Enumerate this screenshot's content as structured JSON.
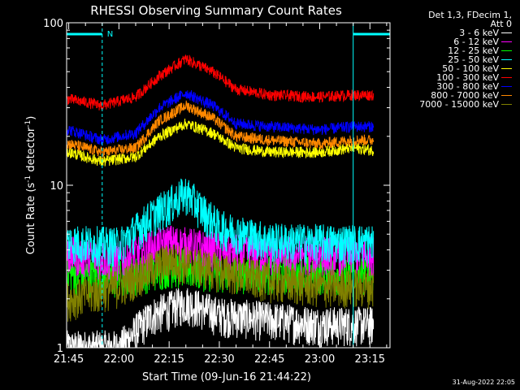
{
  "chart_data": {
    "type": "line",
    "title": "RHESSI Observing Summary Count Rates",
    "xlabel": "Start Time (09-Jun-16 21:44:22)",
    "ylabel": "Count Rate (s^-1 detector^-1)",
    "y_scale": "log",
    "ylim": [
      1,
      100
    ],
    "xlim": [
      "21:44:22",
      "23:21:00"
    ],
    "x_ticks": [
      "21:45",
      "22:00",
      "22:15",
      "22:30",
      "22:45",
      "23:00",
      "23:15"
    ],
    "y_ticks": [
      "1",
      "10",
      "100"
    ],
    "legend_header": [
      "Det 1,3, FDecim 1,",
      "Att 0"
    ],
    "legend_position": "top-right, outside plot",
    "flag_markers": [
      {
        "label": "N",
        "start": "21:44:22",
        "end": "21:55:00",
        "color": "#00ffff",
        "level": "top"
      },
      {
        "label": "",
        "start": "23:10:00",
        "end": "23:21:00",
        "color": "#00ffff",
        "level": "top"
      }
    ],
    "series": [
      {
        "name": "3 - 6 keV",
        "color": "#ffffff",
        "times": [
          "21:45",
          "22:00",
          "22:10",
          "22:20",
          "22:30",
          "22:45",
          "23:00",
          "23:20"
        ],
        "values": [
          1,
          1,
          1.6,
          1.9,
          1.6,
          1.5,
          1.4,
          1.4
        ]
      },
      {
        "name": "6 - 12 keV",
        "color": "#ff00ff",
        "times": [
          "21:45",
          "22:00",
          "22:15",
          "22:30",
          "22:45",
          "23:00",
          "23:20"
        ],
        "values": [
          3.8,
          3.5,
          4.5,
          4.0,
          3.8,
          3.8,
          3.8
        ]
      },
      {
        "name": "12 - 25 keV",
        "color": "#00ff00",
        "times": [
          "21:45",
          "22:00",
          "22:15",
          "22:30",
          "22:45",
          "23:00",
          "23:20"
        ],
        "values": [
          2.9,
          2.7,
          3.2,
          3.0,
          2.9,
          2.9,
          2.9
        ]
      },
      {
        "name": "25 - 50 keV",
        "color": "#00ffff",
        "times": [
          "21:45",
          "22:00",
          "22:10",
          "22:20",
          "22:30",
          "22:45",
          "23:00",
          "23:20"
        ],
        "values": [
          4.5,
          4.3,
          6.5,
          9.0,
          5.5,
          4.6,
          4.5,
          4.5
        ]
      },
      {
        "name": "50 - 100 keV",
        "color": "#ffff00",
        "times": [
          "21:45",
          "21:55",
          "22:05",
          "22:12",
          "22:20",
          "22:28",
          "22:35",
          "22:45",
          "23:00",
          "23:10",
          "23:20"
        ],
        "values": [
          16,
          14,
          15,
          20,
          24,
          21,
          17,
          16,
          16,
          17,
          16
        ]
      },
      {
        "name": "100 - 300 keV",
        "color": "#ff0000",
        "times": [
          "21:45",
          "21:55",
          "22:05",
          "22:12",
          "22:20",
          "22:28",
          "22:35",
          "22:45",
          "23:00",
          "23:10",
          "23:20"
        ],
        "values": [
          34,
          31,
          35,
          47,
          60,
          50,
          39,
          36,
          35,
          36,
          36
        ]
      },
      {
        "name": "300 - 800 keV",
        "color": "#0000ff",
        "times": [
          "21:45",
          "21:55",
          "22:05",
          "22:12",
          "22:20",
          "22:28",
          "22:35",
          "22:45",
          "23:00",
          "23:10",
          "23:20"
        ],
        "values": [
          22,
          19,
          21,
          30,
          37,
          31,
          24,
          23,
          22,
          23,
          23
        ]
      },
      {
        "name": "800 - 7000 keV",
        "color": "#ff8800",
        "times": [
          "21:45",
          "21:55",
          "22:05",
          "22:12",
          "22:20",
          "22:28",
          "22:35",
          "22:45",
          "23:00",
          "23:10",
          "23:20"
        ],
        "values": [
          18,
          16,
          17,
          25,
          31,
          26,
          20,
          19,
          18,
          19,
          19
        ]
      },
      {
        "name": "7000 - 15000 keV",
        "color": "#808000",
        "times": [
          "21:45",
          "22:00",
          "22:15",
          "22:30",
          "22:45",
          "23:00",
          "23:20"
        ],
        "values": [
          2.0,
          2.4,
          3.5,
          3.0,
          2.6,
          2.4,
          2.4
        ]
      }
    ]
  },
  "footer": {
    "timestamp": "31-Aug-2022 22:05"
  }
}
